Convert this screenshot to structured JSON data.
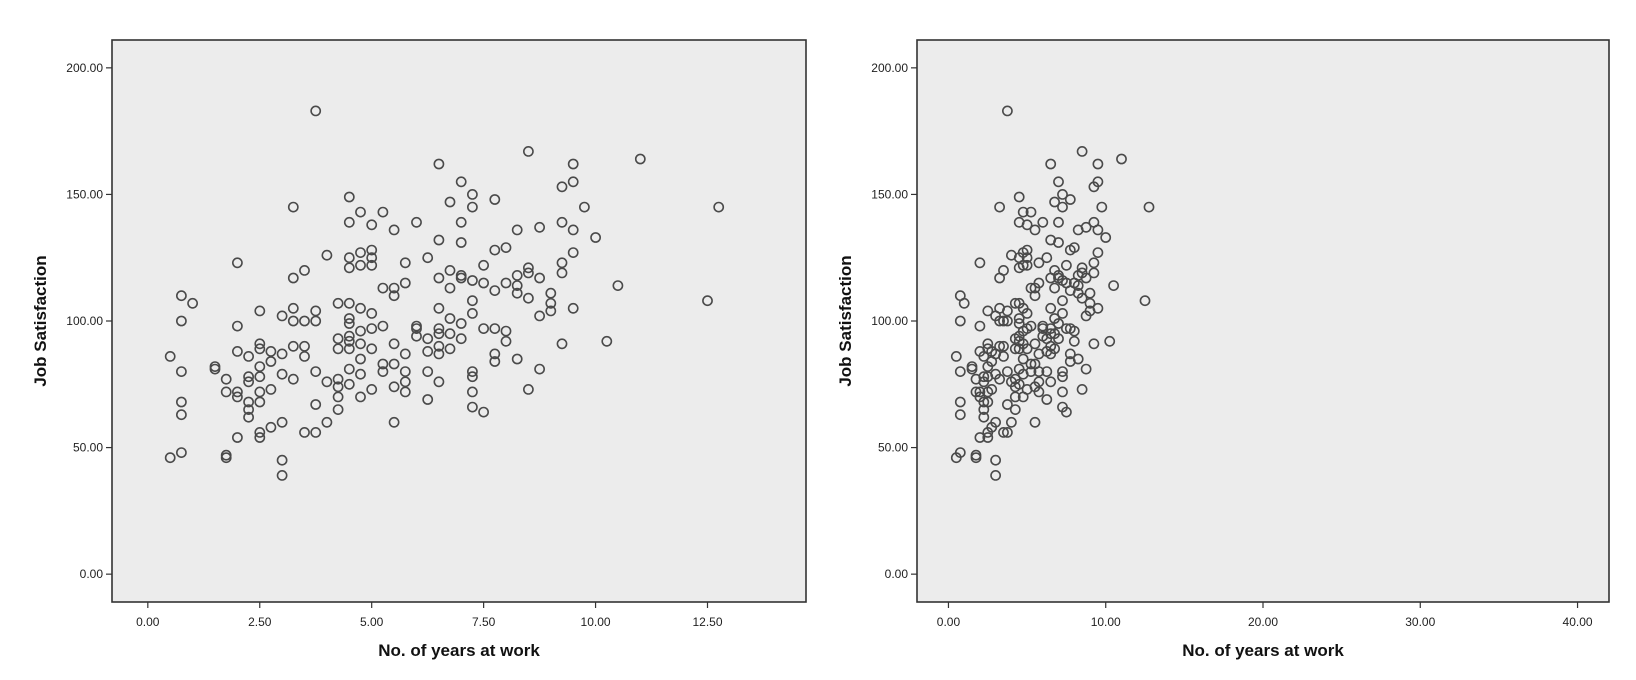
{
  "chart_data": [
    {
      "type": "scatter",
      "title": "",
      "xlabel": "No. of years at work",
      "ylabel": "Job Satisfaction",
      "xlim": [
        -0.8,
        14.7
      ],
      "ylim": [
        -11,
        211
      ],
      "xticks": [
        0,
        2.5,
        5,
        7.5,
        10,
        12.5
      ],
      "xtick_labels": [
        "0.00",
        "2.50",
        "5.00",
        "7.50",
        "10.00",
        "12.50"
      ],
      "yticks": [
        0,
        50,
        100,
        150,
        200
      ],
      "ytick_labels": [
        "0.00",
        "50.00",
        "100.00",
        "150.00",
        "200.00"
      ],
      "grid": false,
      "point_style": "open-circle",
      "points": [
        [
          0.5,
          86
        ],
        [
          0.5,
          46
        ],
        [
          0.75,
          110
        ],
        [
          0.75,
          100
        ],
        [
          0.75,
          80
        ],
        [
          0.75,
          68
        ],
        [
          0.75,
          63
        ],
        [
          0.75,
          48
        ],
        [
          1,
          107
        ],
        [
          1.5,
          82
        ],
        [
          1.5,
          81
        ],
        [
          1.75,
          77
        ],
        [
          1.75,
          72
        ],
        [
          1.75,
          47
        ],
        [
          1.75,
          46
        ],
        [
          2,
          123
        ],
        [
          2,
          98
        ],
        [
          2,
          88
        ],
        [
          2,
          72
        ],
        [
          2,
          70
        ],
        [
          2,
          54
        ],
        [
          2.25,
          86
        ],
        [
          2.25,
          78
        ],
        [
          2.25,
          76
        ],
        [
          2.25,
          68
        ],
        [
          2.25,
          65
        ],
        [
          2.25,
          62
        ],
        [
          2.5,
          104
        ],
        [
          2.5,
          91
        ],
        [
          2.5,
          89
        ],
        [
          2.5,
          82
        ],
        [
          2.5,
          78
        ],
        [
          2.5,
          72
        ],
        [
          2.5,
          68
        ],
        [
          2.5,
          56
        ],
        [
          2.5,
          54
        ],
        [
          2.75,
          88
        ],
        [
          2.75,
          84
        ],
        [
          2.75,
          73
        ],
        [
          2.75,
          58
        ],
        [
          3,
          102
        ],
        [
          3,
          87
        ],
        [
          3,
          79
        ],
        [
          3,
          60
        ],
        [
          3,
          45
        ],
        [
          3,
          39
        ],
        [
          3.25,
          145
        ],
        [
          3.25,
          117
        ],
        [
          3.25,
          105
        ],
        [
          3.25,
          100
        ],
        [
          3.25,
          90
        ],
        [
          3.25,
          77
        ],
        [
          3.5,
          120
        ],
        [
          3.5,
          100
        ],
        [
          3.5,
          90
        ],
        [
          3.5,
          86
        ],
        [
          3.5,
          56
        ],
        [
          3.75,
          183
        ],
        [
          3.75,
          104
        ],
        [
          3.75,
          100
        ],
        [
          3.75,
          80
        ],
        [
          3.75,
          67
        ],
        [
          3.75,
          56
        ],
        [
          4,
          126
        ],
        [
          4,
          76
        ],
        [
          4,
          60
        ],
        [
          4.25,
          107
        ],
        [
          4.25,
          93
        ],
        [
          4.25,
          89
        ],
        [
          4.25,
          77
        ],
        [
          4.25,
          74
        ],
        [
          4.25,
          70
        ],
        [
          4.25,
          65
        ],
        [
          4.5,
          149
        ],
        [
          4.5,
          139
        ],
        [
          4.5,
          125
        ],
        [
          4.5,
          121
        ],
        [
          4.5,
          107
        ],
        [
          4.5,
          101
        ],
        [
          4.5,
          99
        ],
        [
          4.5,
          94
        ],
        [
          4.5,
          92
        ],
        [
          4.5,
          89
        ],
        [
          4.5,
          81
        ],
        [
          4.5,
          75
        ],
        [
          4.75,
          143
        ],
        [
          4.75,
          127
        ],
        [
          4.75,
          122
        ],
        [
          4.75,
          105
        ],
        [
          4.75,
          96
        ],
        [
          4.75,
          91
        ],
        [
          4.75,
          85
        ],
        [
          4.75,
          79
        ],
        [
          4.75,
          70
        ],
        [
          5,
          138
        ],
        [
          5,
          128
        ],
        [
          5,
          125
        ],
        [
          5,
          122
        ],
        [
          5,
          103
        ],
        [
          5,
          97
        ],
        [
          5,
          89
        ],
        [
          5,
          73
        ],
        [
          5.25,
          143
        ],
        [
          5.25,
          113
        ],
        [
          5.25,
          98
        ],
        [
          5.25,
          83
        ],
        [
          5.25,
          80
        ],
        [
          5.5,
          136
        ],
        [
          5.5,
          113
        ],
        [
          5.5,
          110
        ],
        [
          5.5,
          91
        ],
        [
          5.5,
          83
        ],
        [
          5.5,
          74
        ],
        [
          5.5,
          60
        ],
        [
          5.75,
          123
        ],
        [
          5.75,
          115
        ],
        [
          5.75,
          87
        ],
        [
          5.75,
          80
        ],
        [
          5.75,
          76
        ],
        [
          5.75,
          72
        ],
        [
          6,
          139
        ],
        [
          6,
          98
        ],
        [
          6,
          97
        ],
        [
          6,
          94
        ],
        [
          6.25,
          125
        ],
        [
          6.25,
          93
        ],
        [
          6.25,
          88
        ],
        [
          6.25,
          80
        ],
        [
          6.25,
          69
        ],
        [
          6.5,
          162
        ],
        [
          6.5,
          132
        ],
        [
          6.5,
          117
        ],
        [
          6.5,
          105
        ],
        [
          6.5,
          97
        ],
        [
          6.5,
          95
        ],
        [
          6.5,
          90
        ],
        [
          6.5,
          87
        ],
        [
          6.5,
          76
        ],
        [
          6.75,
          147
        ],
        [
          6.75,
          120
        ],
        [
          6.75,
          113
        ],
        [
          6.75,
          101
        ],
        [
          6.75,
          95
        ],
        [
          6.75,
          89
        ],
        [
          7,
          155
        ],
        [
          7,
          139
        ],
        [
          7,
          131
        ],
        [
          7,
          118
        ],
        [
          7,
          117
        ],
        [
          7,
          99
        ],
        [
          7,
          93
        ],
        [
          7.25,
          150
        ],
        [
          7.25,
          145
        ],
        [
          7.25,
          116
        ],
        [
          7.25,
          108
        ],
        [
          7.25,
          103
        ],
        [
          7.25,
          80
        ],
        [
          7.25,
          78
        ],
        [
          7.25,
          72
        ],
        [
          7.25,
          66
        ],
        [
          7.5,
          122
        ],
        [
          7.5,
          115
        ],
        [
          7.5,
          97
        ],
        [
          7.5,
          64
        ],
        [
          7.75,
          148
        ],
        [
          7.75,
          128
        ],
        [
          7.75,
          112
        ],
        [
          7.75,
          97
        ],
        [
          7.75,
          87
        ],
        [
          7.75,
          84
        ],
        [
          8,
          129
        ],
        [
          8,
          115
        ],
        [
          8,
          96
        ],
        [
          8,
          92
        ],
        [
          8.25,
          136
        ],
        [
          8.25,
          118
        ],
        [
          8.25,
          114
        ],
        [
          8.25,
          111
        ],
        [
          8.25,
          85
        ],
        [
          8.5,
          167
        ],
        [
          8.5,
          121
        ],
        [
          8.5,
          119
        ],
        [
          8.5,
          109
        ],
        [
          8.5,
          73
        ],
        [
          8.75,
          137
        ],
        [
          8.75,
          117
        ],
        [
          8.75,
          102
        ],
        [
          8.75,
          81
        ],
        [
          9,
          111
        ],
        [
          9,
          107
        ],
        [
          9,
          104
        ],
        [
          9.25,
          153
        ],
        [
          9.25,
          139
        ],
        [
          9.25,
          123
        ],
        [
          9.25,
          119
        ],
        [
          9.25,
          91
        ],
        [
          9.5,
          162
        ],
        [
          9.5,
          155
        ],
        [
          9.5,
          136
        ],
        [
          9.5,
          127
        ],
        [
          9.5,
          105
        ],
        [
          9.75,
          145
        ],
        [
          10,
          133
        ],
        [
          10.25,
          92
        ],
        [
          10.5,
          114
        ],
        [
          11,
          164
        ],
        [
          12.5,
          108
        ],
        [
          12.75,
          145
        ]
      ]
    },
    {
      "type": "scatter",
      "title": "",
      "xlabel": "No. of years at work",
      "ylabel": "Job Satisfaction",
      "xlim": [
        -2,
        42
      ],
      "ylim": [
        -11,
        211
      ],
      "xticks": [
        0,
        10,
        20,
        30,
        40
      ],
      "xtick_labels": [
        "0.00",
        "10.00",
        "20.00",
        "30.00",
        "40.00"
      ],
      "yticks": [
        0,
        50,
        100,
        150,
        200
      ],
      "ytick_labels": [
        "0.00",
        "50.00",
        "100.00",
        "150.00",
        "200.00"
      ],
      "grid": false,
      "point_style": "open-circle",
      "points": "same as panel 1"
    }
  ]
}
